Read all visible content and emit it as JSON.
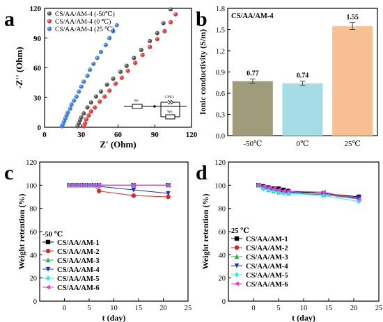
{
  "panels": {
    "a": {
      "letter": "a"
    },
    "b": {
      "letter": "b"
    },
    "c": {
      "letter": "c"
    },
    "d": {
      "letter": "d"
    }
  },
  "chart_data": [
    {
      "id": "a",
      "type": "scatter",
      "title": "",
      "xlabel": "Z' (Ohm)",
      "ylabel": "-Z'' (Ohm)",
      "xlim": [
        0,
        120
      ],
      "ylim": [
        0,
        120
      ],
      "xticks": [
        0,
        30,
        60,
        90,
        120
      ],
      "yticks": [
        0,
        30,
        60,
        90,
        120
      ],
      "legend_position": "top-left",
      "inset_labels": {
        "rs": "Rs",
        "cpe": "CPE1",
        "wo": "Wo"
      },
      "series": [
        {
          "name": "CS/AA/AM-4 (-50℃)",
          "color": "#555555",
          "points": [
            [
              27,
              1
            ],
            [
              28,
              4
            ],
            [
              29,
              7
            ],
            [
              30,
              10
            ],
            [
              32,
              14
            ],
            [
              35,
              20
            ],
            [
              38,
              25
            ],
            [
              42,
              31
            ],
            [
              46,
              36
            ],
            [
              51,
              43
            ],
            [
              56,
              49
            ],
            [
              62,
              56
            ],
            [
              67,
              62
            ],
            [
              73,
              70
            ],
            [
              79,
              78
            ],
            [
              86,
              87
            ],
            [
              92,
              95
            ],
            [
              97,
              105
            ],
            [
              103,
              119
            ]
          ]
        },
        {
          "name": "CS/AA/AM-4 (0 ℃)",
          "color": "#e23838",
          "points": [
            [
              32,
              1
            ],
            [
              33,
              4
            ],
            [
              34,
              8
            ],
            [
              36,
              12
            ],
            [
              38,
              16
            ],
            [
              41,
              20
            ],
            [
              45,
              26
            ],
            [
              49,
              31
            ],
            [
              53,
              37
            ],
            [
              58,
              44
            ],
            [
              63,
              50
            ],
            [
              68,
              57
            ],
            [
              74,
              65
            ],
            [
              80,
              73
            ],
            [
              86,
              81
            ],
            [
              92,
              89
            ],
            [
              98,
              97
            ],
            [
              103,
              106
            ],
            [
              107,
              114
            ]
          ]
        },
        {
          "name": "CS/AA/AM-4 (25 ℃)",
          "color": "#3a7be0",
          "points": [
            [
              14,
              1
            ],
            [
              15,
              3
            ],
            [
              16,
              6
            ],
            [
              17,
              9
            ],
            [
              18,
              12
            ],
            [
              19,
              15
            ],
            [
              21,
              19
            ],
            [
              22,
              23
            ],
            [
              24,
              27
            ],
            [
              26,
              31
            ],
            [
              28,
              36
            ],
            [
              30,
              41
            ],
            [
              32,
              46
            ],
            [
              35,
              52
            ],
            [
              37,
              58
            ],
            [
              40,
              64
            ],
            [
              43,
              70
            ],
            [
              46,
              76
            ],
            [
              50,
              83
            ],
            [
              53,
              90
            ],
            [
              56,
              97
            ],
            [
              59,
              103
            ]
          ]
        }
      ]
    },
    {
      "id": "b",
      "type": "bar",
      "title": "CS/AA/AM-4",
      "ylabel": "Ionic conductivity (S/m)",
      "ylim": [
        0,
        1.8
      ],
      "yticks": [
        "0.0",
        "0.3",
        "0.6",
        "0.9",
        "1.2",
        "1.5",
        "1.8"
      ],
      "categories": [
        "-50℃",
        "0℃",
        "25℃"
      ],
      "values": [
        0.77,
        0.74,
        1.55
      ],
      "value_labels": [
        "0.77",
        "0.74",
        "1.55"
      ],
      "errors": [
        0.03,
        0.03,
        0.05
      ],
      "colors": [
        "#9e9c7a",
        "#a6dce6",
        "#f7c092"
      ]
    },
    {
      "id": "c",
      "type": "line",
      "title": "",
      "annotation": "-50 ℃",
      "xlabel": "t (day)",
      "ylabel": "Weight retention (%)",
      "xlim": [
        -5,
        25
      ],
      "ylim": [
        0,
        120
      ],
      "xticks": [
        0,
        5,
        10,
        15,
        20,
        25
      ],
      "yticks": [
        0,
        20,
        40,
        60,
        80,
        100,
        120
      ],
      "legend_position": "bottom-left",
      "series": [
        {
          "name": "CS/AA/AM-1",
          "color": "#000000",
          "marker": "square",
          "points": [
            [
              1,
              100
            ],
            [
              2,
              100
            ],
            [
              3,
              100
            ],
            [
              4,
              100
            ],
            [
              5,
              100
            ],
            [
              6,
              100
            ],
            [
              7,
              100
            ],
            [
              14,
              100
            ],
            [
              21,
              100
            ]
          ]
        },
        {
          "name": "CS/AA/AM-2",
          "color": "#e8201f",
          "marker": "circle",
          "points": [
            [
              1,
              100
            ],
            [
              2,
              100
            ],
            [
              3,
              100
            ],
            [
              4,
              100
            ],
            [
              5,
              100
            ],
            [
              6,
              100
            ],
            [
              7,
              95
            ],
            [
              14,
              91
            ],
            [
              21,
              90
            ]
          ]
        },
        {
          "name": "CS/AA/AM-3",
          "color": "#22b34a",
          "marker": "triangle-up",
          "points": [
            [
              1,
              100
            ],
            [
              2,
              100
            ],
            [
              3,
              100
            ],
            [
              4,
              100
            ],
            [
              5,
              100
            ],
            [
              6,
              100
            ],
            [
              7,
              100
            ],
            [
              14,
              100
            ],
            [
              21,
              100
            ]
          ]
        },
        {
          "name": "CS/AA/AM-4",
          "color": "#1a2fd6",
          "marker": "triangle-down",
          "points": [
            [
              1,
              100
            ],
            [
              2,
              100
            ],
            [
              3,
              100
            ],
            [
              4,
              100
            ],
            [
              5,
              100
            ],
            [
              6,
              100
            ],
            [
              7,
              99
            ],
            [
              14,
              96
            ],
            [
              21,
              93
            ]
          ]
        },
        {
          "name": "CS/AA/AM-5",
          "color": "#2ee8f0",
          "marker": "diamond",
          "points": [
            [
              1,
              100
            ],
            [
              2,
              100
            ],
            [
              3,
              100
            ],
            [
              4,
              100
            ],
            [
              5,
              100
            ],
            [
              6,
              100
            ],
            [
              7,
              100
            ],
            [
              14,
              100
            ],
            [
              21,
              100
            ]
          ]
        },
        {
          "name": "CS/AA/AM-6",
          "color": "#e23be0",
          "marker": "triangle-left",
          "points": [
            [
              1,
              100
            ],
            [
              2,
              100
            ],
            [
              3,
              100
            ],
            [
              4,
              100
            ],
            [
              5,
              100
            ],
            [
              6,
              100
            ],
            [
              7,
              100
            ],
            [
              14,
              100
            ],
            [
              21,
              100
            ]
          ]
        }
      ]
    },
    {
      "id": "d",
      "type": "line",
      "title": "",
      "annotation": "25 ℃",
      "xlabel": "t (day)",
      "ylabel": "Weight retention (%)",
      "xlim": [
        -5,
        25
      ],
      "ylim": [
        0,
        120
      ],
      "xticks": [
        0,
        5,
        10,
        15,
        20,
        25
      ],
      "yticks": [
        0,
        20,
        40,
        60,
        80,
        100,
        120
      ],
      "legend_position": "bottom-left",
      "series": [
        {
          "name": "CS/AA/AM-1",
          "color": "#000000",
          "marker": "square",
          "points": [
            [
              1,
              100
            ],
            [
              2,
              99
            ],
            [
              3,
              98
            ],
            [
              4,
              97
            ],
            [
              5,
              97
            ],
            [
              6,
              96
            ],
            [
              7,
              95
            ],
            [
              14,
              93
            ],
            [
              21,
              90
            ]
          ]
        },
        {
          "name": "CS/AA/AM-2",
          "color": "#e8201f",
          "marker": "circle",
          "points": [
            [
              1,
              100
            ],
            [
              2,
              98
            ],
            [
              3,
              97
            ],
            [
              4,
              96
            ],
            [
              5,
              95
            ],
            [
              6,
              94
            ],
            [
              7,
              93
            ],
            [
              14,
              92
            ],
            [
              21,
              89
            ]
          ]
        },
        {
          "name": "CS/AA/AM-3",
          "color": "#22b34a",
          "marker": "triangle-up",
          "points": [
            [
              1,
              100
            ],
            [
              2,
              98
            ],
            [
              3,
              96
            ],
            [
              4,
              95
            ],
            [
              5,
              94
            ],
            [
              6,
              94
            ],
            [
              7,
              93
            ],
            [
              14,
              92
            ],
            [
              21,
              88
            ]
          ]
        },
        {
          "name": "CS/AA/AM-4",
          "color": "#1a2fd6",
          "marker": "triangle-down",
          "points": [
            [
              1,
              100
            ],
            [
              2,
              98
            ],
            [
              3,
              97
            ],
            [
              4,
              95
            ],
            [
              5,
              95
            ],
            [
              6,
              94
            ],
            [
              7,
              94
            ],
            [
              14,
              93
            ],
            [
              21,
              89
            ]
          ]
        },
        {
          "name": "CS/AA/AM-5",
          "color": "#2ee8f0",
          "marker": "diamond",
          "points": [
            [
              1,
              100
            ],
            [
              2,
              97
            ],
            [
              3,
              96
            ],
            [
              4,
              95
            ],
            [
              5,
              94
            ],
            [
              6,
              93
            ],
            [
              7,
              93
            ],
            [
              14,
              91
            ],
            [
              21,
              86
            ]
          ]
        },
        {
          "name": "CS/AA/AM-6",
          "color": "#e23be0",
          "marker": "triangle-left",
          "points": [
            [
              1,
              100
            ],
            [
              2,
              99
            ],
            [
              3,
              98
            ],
            [
              4,
              97
            ],
            [
              5,
              96
            ],
            [
              6,
              95
            ],
            [
              7,
              95
            ],
            [
              14,
              94
            ],
            [
              21,
              88
            ]
          ]
        }
      ]
    }
  ]
}
